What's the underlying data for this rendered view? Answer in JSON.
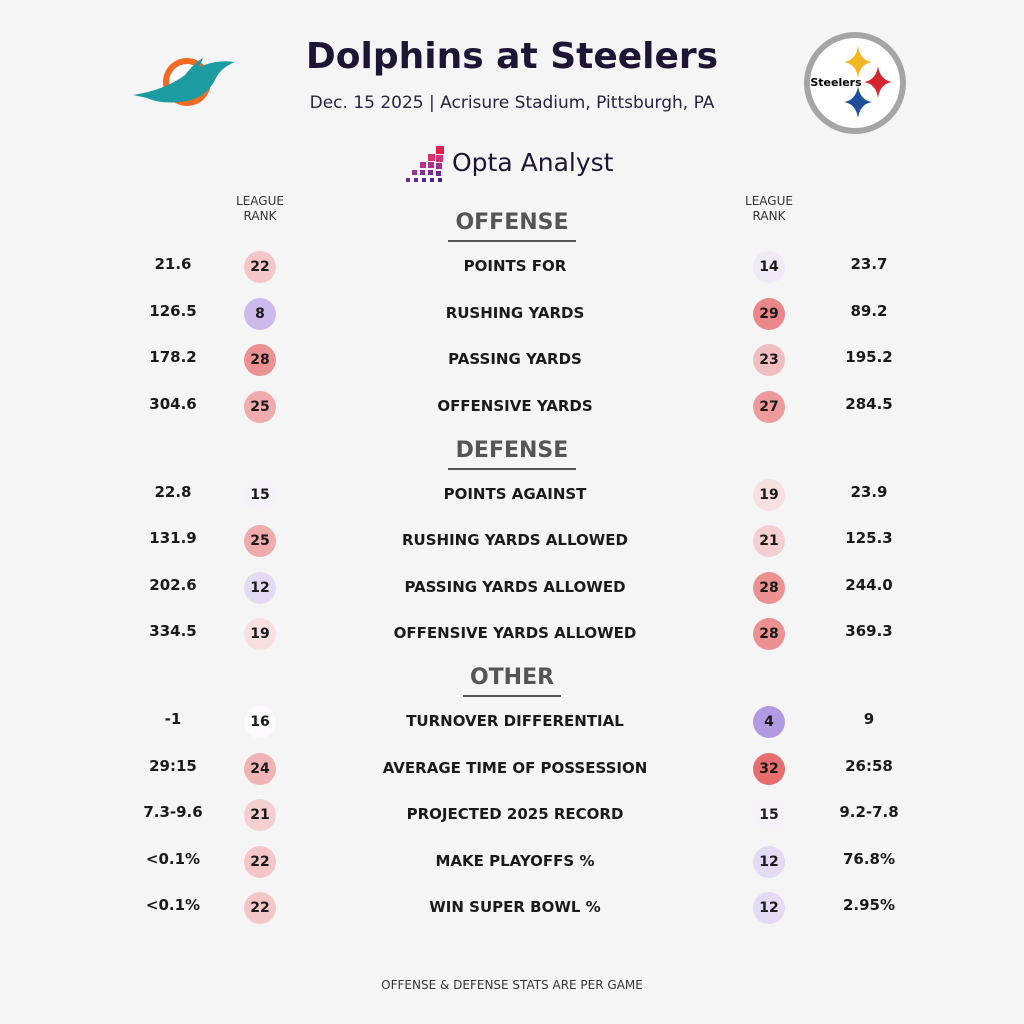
{
  "header": {
    "title": "Dolphins at Steelers",
    "subtitle": "Dec. 15 2025 | Acrisure Stadium, Pittsburgh, PA",
    "brand": "Opta Analyst",
    "home_logo_text": "Steelers"
  },
  "rank_headers": {
    "left": "LEAGUE RANK",
    "right": "LEAGUE RANK"
  },
  "sections": [
    {
      "title": "OFFENSE",
      "rows": [
        {
          "stat": "POINTS FOR",
          "left_value": "21.6",
          "left_rank": 22,
          "right_rank": 14,
          "right_value": "23.7"
        },
        {
          "stat": "RUSHING YARDS",
          "left_value": "126.5",
          "left_rank": 8,
          "right_rank": 29,
          "right_value": "89.2"
        },
        {
          "stat": "PASSING YARDS",
          "left_value": "178.2",
          "left_rank": 28,
          "right_rank": 23,
          "right_value": "195.2"
        },
        {
          "stat": "OFFENSIVE YARDS",
          "left_value": "304.6",
          "left_rank": 25,
          "right_rank": 27,
          "right_value": "284.5"
        }
      ]
    },
    {
      "title": "DEFENSE",
      "rows": [
        {
          "stat": "POINTS AGAINST",
          "left_value": "22.8",
          "left_rank": 15,
          "right_rank": 19,
          "right_value": "23.9"
        },
        {
          "stat": "RUSHING YARDS ALLOWED",
          "left_value": "131.9",
          "left_rank": 25,
          "right_rank": 21,
          "right_value": "125.3"
        },
        {
          "stat": "PASSING YARDS ALLOWED",
          "left_value": "202.6",
          "left_rank": 12,
          "right_rank": 28,
          "right_value": "244.0"
        },
        {
          "stat": "OFFENSIVE YARDS ALLOWED",
          "left_value": "334.5",
          "left_rank": 19,
          "right_rank": 28,
          "right_value": "369.3"
        }
      ]
    },
    {
      "title": "OTHER",
      "rows": [
        {
          "stat": "TURNOVER DIFFERENTIAL",
          "left_value": "-1",
          "left_rank": 16,
          "right_rank": 4,
          "right_value": "9"
        },
        {
          "stat": "AVERAGE TIME OF POSSESSION",
          "left_value": "29:15",
          "left_rank": 24,
          "right_rank": 32,
          "right_value": "26:58"
        },
        {
          "stat": "PROJECTED 2025 RECORD",
          "left_value": "7.3-9.6",
          "left_rank": 21,
          "right_rank": 15,
          "right_value": "9.2-7.8"
        },
        {
          "stat": "MAKE PLAYOFFS %",
          "left_value": "<0.1%",
          "left_rank": 22,
          "right_rank": 12,
          "right_value": "76.8%"
        },
        {
          "stat": "WIN SUPER BOWL %",
          "left_value": "<0.1%",
          "left_rank": 22,
          "right_rank": 12,
          "right_value": "2.95%"
        }
      ]
    }
  ],
  "footer": "OFFENSE & DEFENSE STATS ARE PER GAME"
}
